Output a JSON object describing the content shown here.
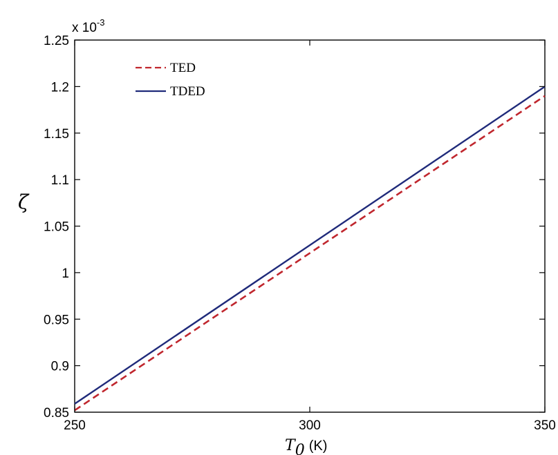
{
  "chart_data": {
    "type": "line",
    "xlabel": "T",
    "xlabel_subscript": "0",
    "xlabel_unit": "(K)",
    "ylabel": "ζ",
    "y_exponent_base": "x 10",
    "y_exponent_power": "-3",
    "xlim": [
      250,
      350
    ],
    "ylim": [
      0.85,
      1.25
    ],
    "x_ticks": [
      250,
      300,
      350
    ],
    "x_tick_labels": [
      "250",
      "300",
      "350"
    ],
    "y_ticks": [
      0.85,
      0.9,
      0.95,
      1.0,
      1.05,
      1.1,
      1.15,
      1.2,
      1.25
    ],
    "y_tick_labels": [
      "0.85",
      "0.9",
      "0.95",
      "1",
      "1.05",
      "1.1",
      "1.15",
      "1.2",
      "1.25"
    ],
    "grid": false,
    "legend_position": "top-left",
    "series": [
      {
        "name": "TED",
        "color": "#c0262d",
        "style": "dashed",
        "x": [
          250,
          350
        ],
        "y": [
          0.852,
          1.19
        ]
      },
      {
        "name": "TDED",
        "color": "#1f2a7a",
        "style": "solid",
        "x": [
          250,
          350
        ],
        "y": [
          0.859,
          1.2
        ]
      }
    ]
  }
}
